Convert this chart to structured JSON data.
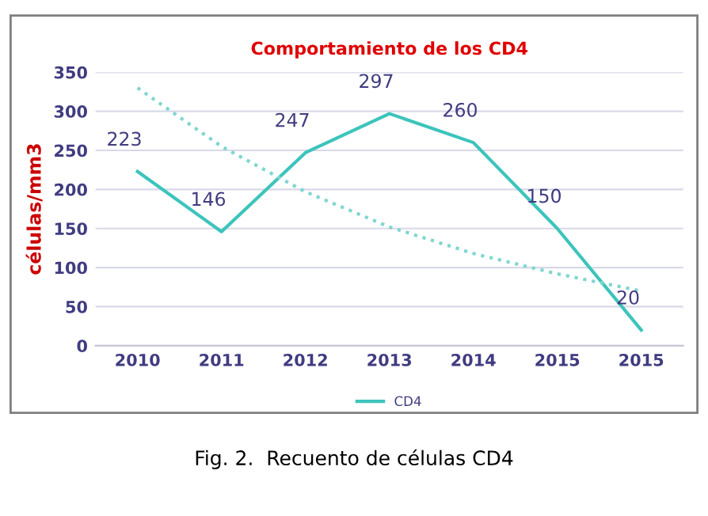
{
  "chart_data": {
    "type": "line",
    "title": "Comportamiento de los CD4",
    "ylabel": "células/mm3",
    "categories": [
      "2010",
      "2011",
      "2012",
      "2013",
      "2014",
      "2015",
      "2015"
    ],
    "series": [
      {
        "name": "CD4",
        "color": "#3cc4bc",
        "values": [
          223,
          146,
          247,
          297,
          260,
          150,
          20
        ],
        "value_labels": [
          "223",
          "146",
          "247",
          "297",
          "260",
          "150",
          "20"
        ],
        "line_style": "solid"
      },
      {
        "color": "#7fd6d0",
        "values": [
          330,
          255,
          197,
          152,
          118,
          92,
          70
        ],
        "line_style": "dotted"
      }
    ],
    "ylim": [
      0,
      350
    ],
    "yticks": [
      0,
      50,
      100,
      150,
      200,
      250,
      300,
      350
    ],
    "grid": "y",
    "legend": "bottom",
    "marker": "none",
    "annotations": [
      "Fig. 2.  Recuento de células CD4"
    ]
  }
}
